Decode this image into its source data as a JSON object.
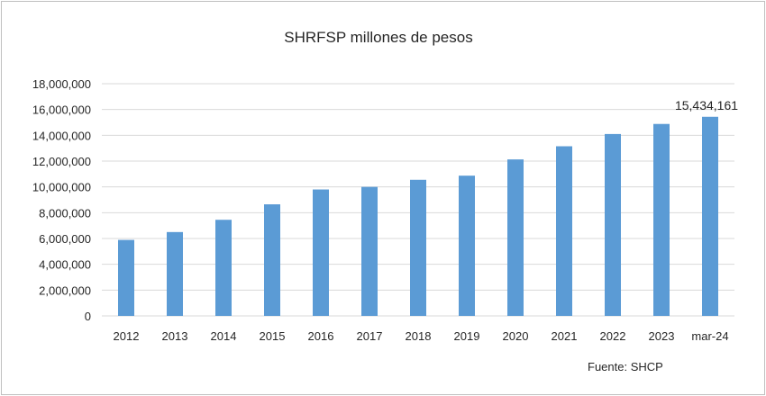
{
  "chart_data": {
    "type": "bar",
    "title": "SHRFSP millones de pesos",
    "xlabel": "",
    "ylabel": "",
    "categories": [
      "2012",
      "2013",
      "2014",
      "2015",
      "2016",
      "2017",
      "2018",
      "2019",
      "2020",
      "2021",
      "2022",
      "2023",
      "mar-24"
    ],
    "values": [
      5890000,
      6500000,
      7450000,
      8650000,
      9800000,
      10000000,
      10550000,
      10870000,
      12130000,
      13150000,
      14100000,
      14880000,
      15434161
    ],
    "ylim": [
      0,
      18000000
    ],
    "yticks": [
      0,
      2000000,
      4000000,
      6000000,
      8000000,
      10000000,
      12000000,
      14000000,
      16000000,
      18000000
    ],
    "ytick_labels": [
      "0",
      "2,000,000",
      "4,000,000",
      "6,000,000",
      "8,000,000",
      "10,000,000",
      "12,000,000",
      "14,000,000",
      "16,000,000",
      "18,000,000"
    ],
    "data_labels": [
      {
        "category": "mar-24",
        "text": "15,434,161"
      }
    ],
    "grid": true,
    "legend": "none",
    "bar_color": "#5b9bd5",
    "gridline_color": "#d9d9d9"
  },
  "source_note": "Fuente: SHCP"
}
